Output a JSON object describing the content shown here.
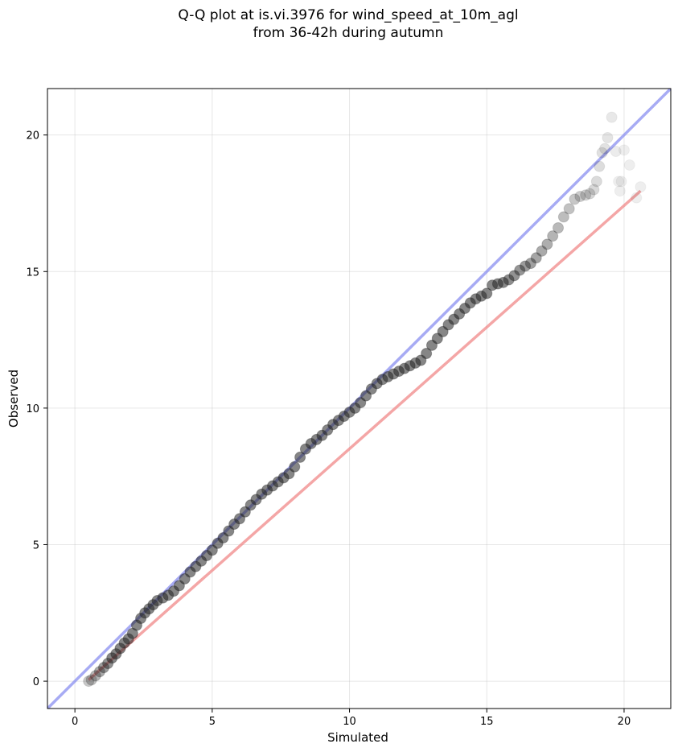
{
  "chart_data": {
    "type": "scatter",
    "title_lines": [
      "Q-Q plot at is.vi.3976 for wind_speed_at_10m_agl",
      "from 36-42h during autumn"
    ],
    "xlabel": "Simulated",
    "ylabel": "Observed",
    "xlim": [
      -1.0,
      21.7
    ],
    "ylim": [
      -1.0,
      21.7
    ],
    "xticks": [
      0,
      5,
      10,
      15,
      20
    ],
    "yticks": [
      0,
      5,
      10,
      15,
      20
    ],
    "grid": true,
    "colors": {
      "points": "#222222",
      "fit_line": "#f08080",
      "identity_line": "#8a8ff0"
    },
    "series": [
      {
        "type": "scatter",
        "x": [
          0.5,
          0.6,
          0.75,
          0.9,
          1.05,
          1.2,
          1.35,
          1.5,
          1.65,
          1.8,
          1.95,
          2.1,
          2.25,
          2.4,
          2.55,
          2.7,
          2.85,
          3.0,
          3.2,
          3.4,
          3.6,
          3.8,
          4.0,
          4.2,
          4.4,
          4.6,
          4.8,
          5.0,
          5.2,
          5.4,
          5.6,
          5.8,
          6.0,
          6.2,
          6.4,
          6.6,
          6.8,
          7.0,
          7.2,
          7.4,
          7.6,
          7.8,
          8.0,
          8.2,
          8.4,
          8.6,
          8.8,
          9.0,
          9.2,
          9.4,
          9.6,
          9.8,
          10.0,
          10.2,
          10.4,
          10.6,
          10.8,
          11.0,
          11.2,
          11.4,
          11.6,
          11.8,
          12.0,
          12.2,
          12.4,
          12.6,
          12.8,
          13.0,
          13.2,
          13.4,
          13.6,
          13.8,
          14.0,
          14.2,
          14.4,
          14.6,
          14.8,
          15.0,
          15.2,
          15.4,
          15.6,
          15.8,
          16.0,
          16.2,
          16.4,
          16.6,
          16.8,
          17.0,
          17.2,
          17.4,
          17.6,
          17.8,
          18.0,
          18.2,
          18.4,
          18.6,
          18.75,
          18.9,
          19.0,
          19.1,
          19.2,
          19.3,
          19.4,
          19.55,
          19.7,
          19.8,
          19.85,
          19.9,
          20.0,
          20.2,
          20.45,
          20.6
        ],
        "y": [
          0.0,
          0.05,
          0.2,
          0.35,
          0.5,
          0.65,
          0.85,
          1.0,
          1.2,
          1.4,
          1.55,
          1.75,
          2.05,
          2.3,
          2.5,
          2.65,
          2.8,
          2.95,
          3.05,
          3.15,
          3.3,
          3.5,
          3.75,
          4.0,
          4.2,
          4.4,
          4.6,
          4.8,
          5.05,
          5.25,
          5.5,
          5.75,
          5.95,
          6.2,
          6.45,
          6.65,
          6.85,
          7.0,
          7.15,
          7.3,
          7.45,
          7.6,
          7.85,
          8.2,
          8.5,
          8.7,
          8.85,
          9.0,
          9.2,
          9.4,
          9.55,
          9.7,
          9.85,
          10.0,
          10.2,
          10.45,
          10.7,
          10.9,
          11.05,
          11.15,
          11.25,
          11.35,
          11.45,
          11.55,
          11.65,
          11.75,
          12.0,
          12.3,
          12.55,
          12.8,
          13.05,
          13.25,
          13.45,
          13.65,
          13.85,
          14.0,
          14.1,
          14.2,
          14.5,
          14.55,
          14.6,
          14.7,
          14.85,
          15.05,
          15.2,
          15.3,
          15.5,
          15.75,
          16.0,
          16.3,
          16.6,
          17.0,
          17.3,
          17.65,
          17.75,
          17.8,
          17.85,
          18.0,
          18.3,
          18.85,
          19.35,
          19.5,
          19.9,
          20.65,
          19.4,
          18.3,
          17.95,
          18.3,
          19.45,
          18.9,
          17.7,
          18.1
        ],
        "marker": "circle"
      },
      {
        "type": "line",
        "x": [
          0.5,
          20.6
        ],
        "y": [
          0.05,
          17.95
        ]
      },
      {
        "type": "line",
        "x": [
          -1.0,
          21.7
        ],
        "y": [
          -1.0,
          21.7
        ]
      }
    ]
  }
}
